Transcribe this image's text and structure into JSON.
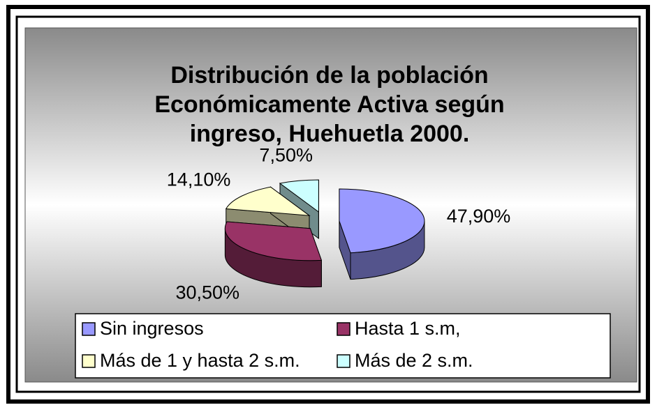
{
  "chart_data": {
    "type": "pie",
    "title": [
      "Distribución de la población",
      "Económicamente Activa según",
      "ingreso, Huehuetla 2000."
    ],
    "categories": [
      "Sin ingresos",
      "Hasta 1 s.m,",
      "Más de 1 y hasta 2 s.m.",
      "Más de 2 s.m."
    ],
    "values": [
      47.9,
      30.5,
      14.1,
      7.5
    ],
    "value_labels": [
      "47,90%",
      "30,50%",
      "14,10%",
      "7,50%"
    ],
    "colors": [
      "#9999ff",
      "#993366",
      "#ffffcc",
      "#ccffff"
    ],
    "legend": "bottom"
  }
}
